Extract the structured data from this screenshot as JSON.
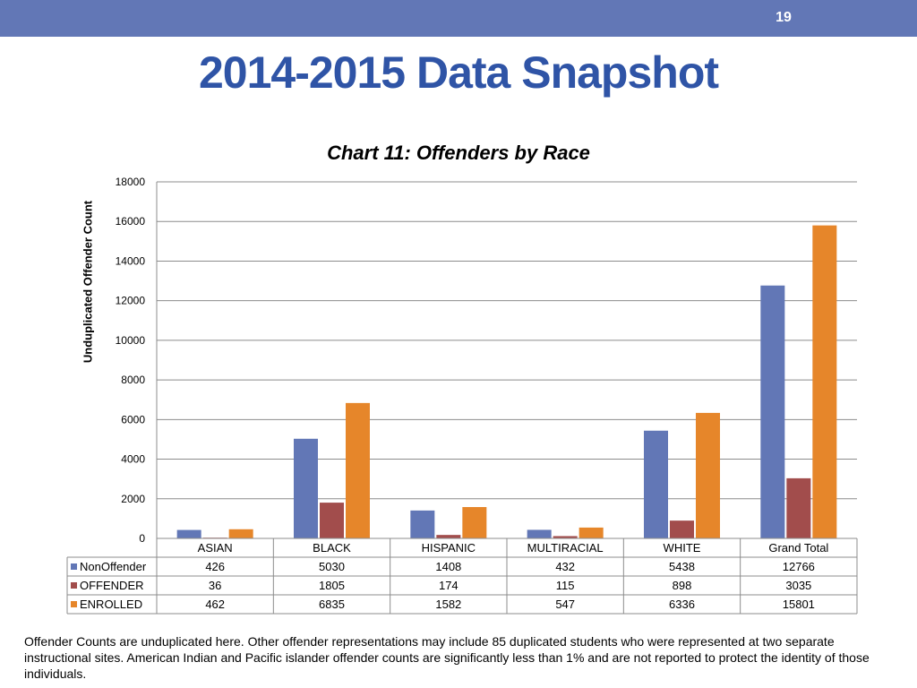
{
  "header": {
    "page_number": "19",
    "title": "2014-2015 Data Snapshot",
    "bar_color": "#6277b6",
    "title_color": "#2f54a6"
  },
  "chart_data": {
    "type": "bar",
    "title": "Chart 11: Offenders by Race",
    "ylabel": "Unduplicated Offender Count",
    "xlabel": "",
    "ylim": [
      0,
      18000
    ],
    "yticks": [
      0,
      2000,
      4000,
      6000,
      8000,
      10000,
      12000,
      14000,
      16000,
      18000
    ],
    "grid": true,
    "legend": "data-table-left",
    "categories": [
      "ASIAN",
      "BLACK",
      "HISPANIC",
      "MULTIRACIAL",
      "WHITE",
      "Grand Total"
    ],
    "series": [
      {
        "name": "NonOffender",
        "color": "#6277b6",
        "values": [
          426,
          5030,
          1408,
          432,
          5438,
          12766
        ]
      },
      {
        "name": "OFFENDER",
        "color": "#a24d4c",
        "values": [
          36,
          1805,
          174,
          115,
          898,
          3035
        ]
      },
      {
        "name": "ENROLLED",
        "color": "#e6862a",
        "values": [
          462,
          6835,
          1582,
          547,
          6336,
          15801
        ]
      }
    ]
  },
  "footnote": "Offender Counts are unduplicated here. Other offender representations may include 85 duplicated  students who were represented at two separate instructional sites.  American Indian  and Pacific islander offender counts are significantly  less than 1% and are not reported to protect the identity of those individuals."
}
